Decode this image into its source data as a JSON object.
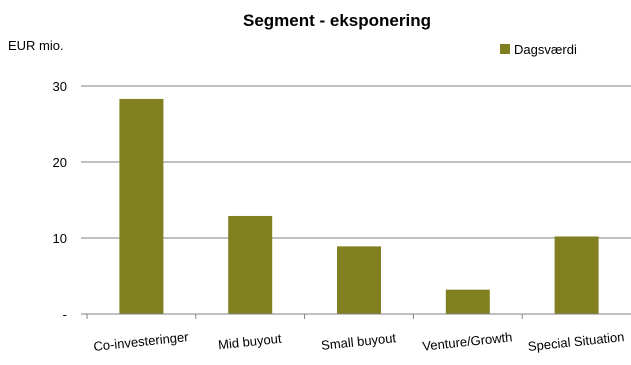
{
  "chart_data": {
    "type": "bar",
    "title": "Segment - eksponering",
    "ylabel": "EUR mio.",
    "xlabel": "",
    "categories": [
      "Co-investeringer",
      "Mid buyout",
      "Small buyout",
      "Venture/Growth",
      "Special Situation"
    ],
    "series": [
      {
        "name": "Dagsværdi",
        "values": [
          28.3,
          12.9,
          8.9,
          3.2,
          10.2
        ],
        "color": "#808020"
      }
    ],
    "ylim": [
      0,
      30
    ],
    "yticks": [
      0,
      10,
      20,
      30
    ],
    "ytick_labels": [
      "-",
      "10",
      "20",
      "30"
    ],
    "grid": true,
    "gridline_color": "#808080",
    "legend_position": "top-right",
    "legend": [
      "Dagsværdi"
    ]
  }
}
